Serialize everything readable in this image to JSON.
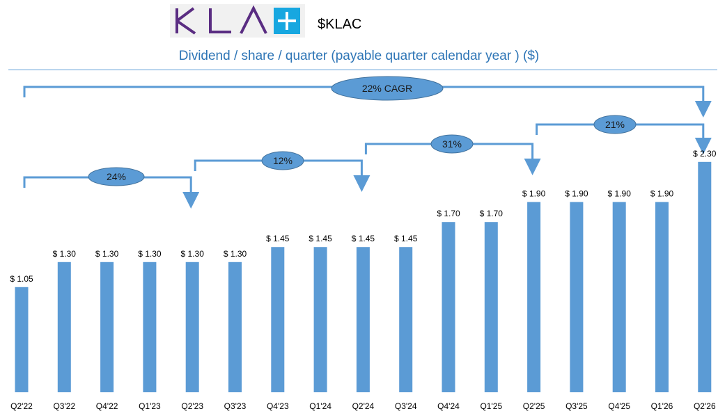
{
  "header": {
    "logo_text": "KLA",
    "ticker": "$KLAC",
    "title": "Dividend / share / quarter (payable quarter calendar year ) ($)"
  },
  "colors": {
    "bar": "#5b9bd5",
    "logo_purple": "#5a2d82",
    "logo_cyan": "#17a7e0",
    "title": "#2e75b6"
  },
  "chart_data": {
    "type": "bar",
    "title": "Dividend / share / quarter (payable quarter calendar year ) ($)",
    "categories": [
      "Q2'22",
      "Q3'22",
      "Q4'22",
      "Q1'23",
      "Q2'23",
      "Q3'23",
      "Q4'23",
      "Q1'24",
      "Q2'24",
      "Q3'24",
      "Q4'24",
      "Q1'25",
      "Q2'25",
      "Q3'25",
      "Q4'25",
      "Q1'26",
      "Q2'26"
    ],
    "values": [
      1.05,
      1.3,
      1.3,
      1.3,
      1.3,
      1.3,
      1.45,
      1.45,
      1.45,
      1.45,
      1.7,
      1.7,
      1.9,
      1.9,
      1.9,
      1.9,
      2.3
    ],
    "data_labels": [
      "$ 1.05",
      "$ 1.30",
      "$ 1.30",
      "$ 1.30",
      "$ 1.30",
      "$ 1.30",
      "$ 1.45",
      "$ 1.45",
      "$ 1.45",
      "$ 1.45",
      "$ 1.70",
      "$ 1.70",
      "$ 1.90",
      "$ 1.90",
      "$ 1.90",
      "$ 1.90",
      "$ 2.30"
    ],
    "ylim": [
      0,
      2.6
    ],
    "grid": false,
    "annotations": [
      {
        "label": "24%",
        "from": "Q2'22",
        "to": "Q2'23"
      },
      {
        "label": "12%",
        "from": "Q2'23",
        "to": "Q2'24"
      },
      {
        "label": "31%",
        "from": "Q2'24",
        "to": "Q2'25"
      },
      {
        "label": "21%",
        "from": "Q2'25",
        "to": "Q2'26"
      },
      {
        "label": "22% CAGR",
        "from": "Q2'22",
        "to": "Q2'26"
      }
    ]
  }
}
